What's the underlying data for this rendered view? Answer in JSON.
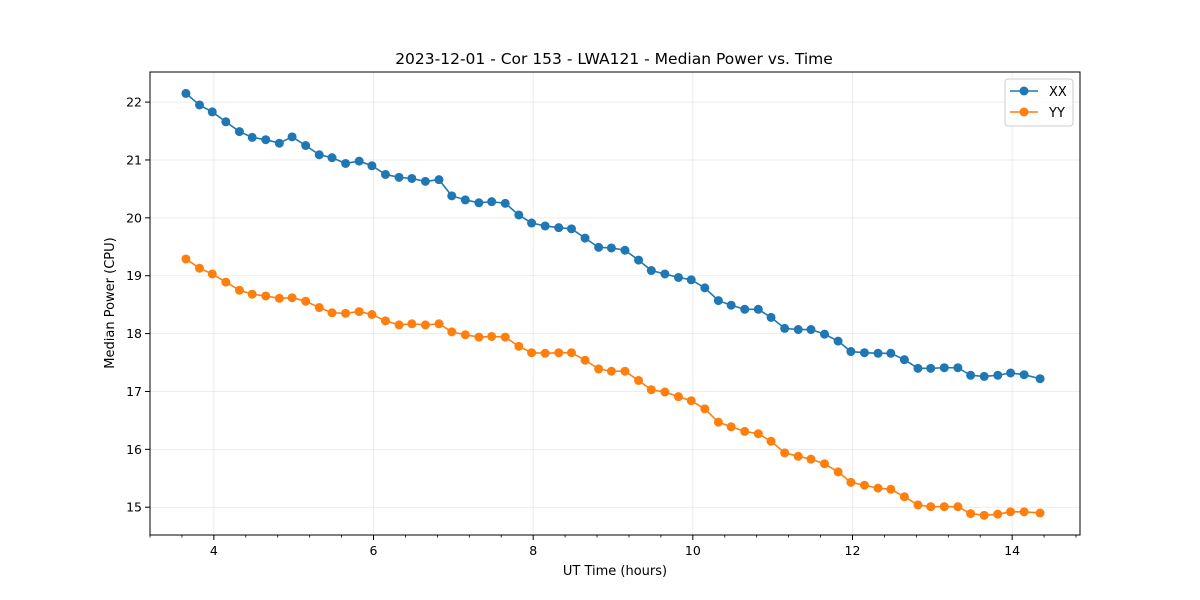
{
  "chart_data": {
    "type": "line",
    "title": "2023-12-01 - Cor 153 - LWA121 - Median Power vs. Time",
    "xlabel": "UT Time (hours)",
    "ylabel": "Median Power (CPU)",
    "xlim": [
      3.2,
      14.85
    ],
    "ylim": [
      14.52,
      22.52
    ],
    "xticks": [
      4,
      6,
      8,
      10,
      12,
      14
    ],
    "xtick_labels": [
      "4",
      "6",
      "8",
      "10",
      "12",
      "14"
    ],
    "xminor_step": 0.4,
    "yticks": [
      15,
      16,
      17,
      18,
      19,
      20,
      21,
      22
    ],
    "ytick_labels": [
      "15",
      "16",
      "17",
      "18",
      "19",
      "20",
      "21",
      "22"
    ],
    "grid": true,
    "legend_position": "top-right",
    "x": [
      3.65,
      3.82,
      3.98,
      4.15,
      4.32,
      4.48,
      4.65,
      4.82,
      4.98,
      5.15,
      5.32,
      5.48,
      5.65,
      5.82,
      5.98,
      6.15,
      6.32,
      6.48,
      6.65,
      6.82,
      6.98,
      7.15,
      7.32,
      7.48,
      7.65,
      7.82,
      7.98,
      8.15,
      8.32,
      8.48,
      8.65,
      8.82,
      8.98,
      9.15,
      9.32,
      9.48,
      9.65,
      9.82,
      9.98,
      10.15,
      10.32,
      10.48,
      10.65,
      10.82,
      10.98,
      11.15,
      11.32,
      11.48,
      11.65,
      11.82,
      11.98,
      12.15,
      12.32,
      12.48,
      12.65,
      12.82,
      12.98,
      13.15,
      13.32,
      13.48,
      13.65,
      13.82,
      13.98,
      14.15,
      14.35
    ],
    "series": [
      {
        "name": "XX",
        "color": "#1f77b4",
        "values": [
          22.15,
          21.95,
          21.83,
          21.66,
          21.49,
          21.39,
          21.35,
          21.29,
          21.4,
          21.25,
          21.09,
          21.04,
          20.94,
          20.98,
          20.9,
          20.75,
          20.7,
          20.68,
          20.63,
          20.66,
          20.38,
          20.31,
          20.26,
          20.28,
          20.25,
          20.05,
          19.91,
          19.86,
          19.83,
          19.81,
          19.65,
          19.49,
          19.48,
          19.44,
          19.27,
          19.09,
          19.03,
          18.97,
          18.93,
          18.79,
          18.57,
          18.49,
          18.42,
          18.42,
          18.28,
          18.09,
          18.07,
          18.07,
          17.99,
          17.87,
          17.69,
          17.67,
          17.66,
          17.66,
          17.55,
          17.4,
          17.4,
          17.41,
          17.41,
          17.28,
          17.26,
          17.28,
          17.32,
          17.29,
          17.22
        ]
      },
      {
        "name": "YY",
        "color": "#ff7f0e",
        "values": [
          19.29,
          19.13,
          19.03,
          18.89,
          18.75,
          18.68,
          18.65,
          18.61,
          18.62,
          18.56,
          18.45,
          18.36,
          18.35,
          18.38,
          18.33,
          18.22,
          18.15,
          18.17,
          18.15,
          18.17,
          18.03,
          17.98,
          17.94,
          17.95,
          17.94,
          17.78,
          17.67,
          17.66,
          17.67,
          17.67,
          17.54,
          17.39,
          17.35,
          17.35,
          17.19,
          17.03,
          16.99,
          16.91,
          16.84,
          16.7,
          16.47,
          16.39,
          16.31,
          16.27,
          16.14,
          15.94,
          15.88,
          15.83,
          15.75,
          15.61,
          15.43,
          15.38,
          15.33,
          15.31,
          15.18,
          15.04,
          15.01,
          15.01,
          15.01,
          14.89,
          14.86,
          14.88,
          14.92,
          14.92,
          14.9
        ]
      }
    ]
  }
}
